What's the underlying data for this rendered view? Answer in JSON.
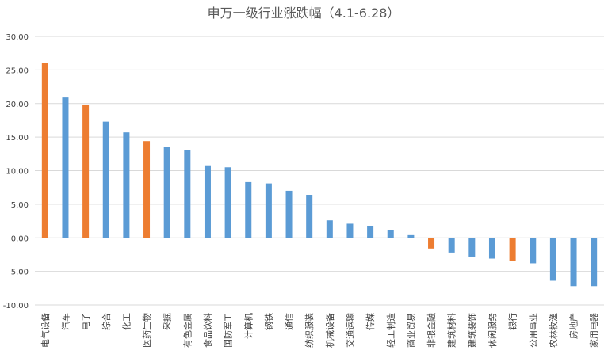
{
  "chart_data": {
    "type": "bar",
    "title": "申万一级行业涨跌幅（4.1-6.28）",
    "xlabel": "",
    "ylabel": "",
    "ylim": [
      -10,
      30
    ],
    "yticks": [
      "30.00",
      "25.00",
      "20.00",
      "15.00",
      "10.00",
      "5.00",
      "0.00",
      "-5.00",
      "-10.00"
    ],
    "grid": true,
    "legend": "none",
    "colors": {
      "default": "#5b9bd5",
      "highlight": "#ed7d31",
      "grid": "#d9d9d9"
    },
    "categories": [
      "电气设备",
      "汽车",
      "电子",
      "综合",
      "化工",
      "医药生物",
      "采掘",
      "有色金属",
      "食品饮料",
      "国防军工",
      "计算机",
      "钢铁",
      "通信",
      "纺织服装",
      "机械设备",
      "交通运输",
      "传媒",
      "轻工制造",
      "商业贸易",
      "非银金融",
      "建筑材料",
      "建筑装饰",
      "休闲服务",
      "银行",
      "公用事业",
      "农林牧渔",
      "房地产",
      "家用电器"
    ],
    "values": [
      26.0,
      20.9,
      19.8,
      17.3,
      15.7,
      14.4,
      13.5,
      13.1,
      10.8,
      10.5,
      8.3,
      8.1,
      7.0,
      6.4,
      2.6,
      2.1,
      1.8,
      1.1,
      0.4,
      -1.6,
      -2.2,
      -2.8,
      -3.1,
      -3.4,
      -3.8,
      -6.4,
      -7.2,
      -7.2
    ],
    "highlighted": [
      "电气设备",
      "电子",
      "医药生物",
      "非银金融",
      "银行"
    ]
  }
}
